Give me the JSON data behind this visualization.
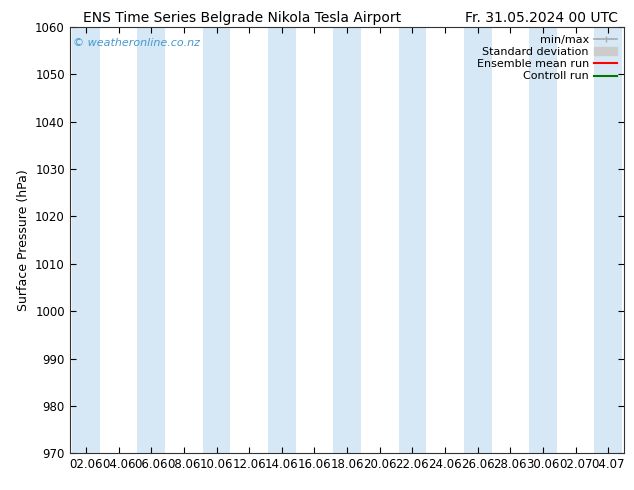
{
  "title_left": "ENS Time Series Belgrade Nikola Tesla Airport",
  "title_right": "Fr. 31.05.2024 00 UTC",
  "ylabel": "Surface Pressure (hPa)",
  "ylim": [
    970,
    1060
  ],
  "yticks": [
    970,
    980,
    990,
    1000,
    1010,
    1020,
    1030,
    1040,
    1050,
    1060
  ],
  "x_labels": [
    "02.06",
    "04.06",
    "06.06",
    "08.06",
    "10.06",
    "12.06",
    "14.06",
    "16.06",
    "18.06",
    "20.06",
    "22.06",
    "24.06",
    "26.06",
    "28.06",
    "30.06",
    "02.07",
    "04.07"
  ],
  "band_color": "#d6e8f5",
  "background_color": "#ffffff",
  "plot_bg_color": "#ffffff",
  "watermark": "© weatheronline.co.nz",
  "watermark_color": "#4499cc",
  "legend_items": [
    {
      "label": "min/max",
      "color": "#aaaaaa",
      "lw": 1.2
    },
    {
      "label": "Standard deviation",
      "color": "#cccccc",
      "lw": 6
    },
    {
      "label": "Ensemble mean run",
      "color": "#ff0000",
      "lw": 1.5
    },
    {
      "label": "Controll run",
      "color": "#007700",
      "lw": 1.5
    }
  ],
  "title_fontsize": 10,
  "axis_label_fontsize": 9,
  "tick_fontsize": 8.5,
  "legend_fontsize": 8
}
